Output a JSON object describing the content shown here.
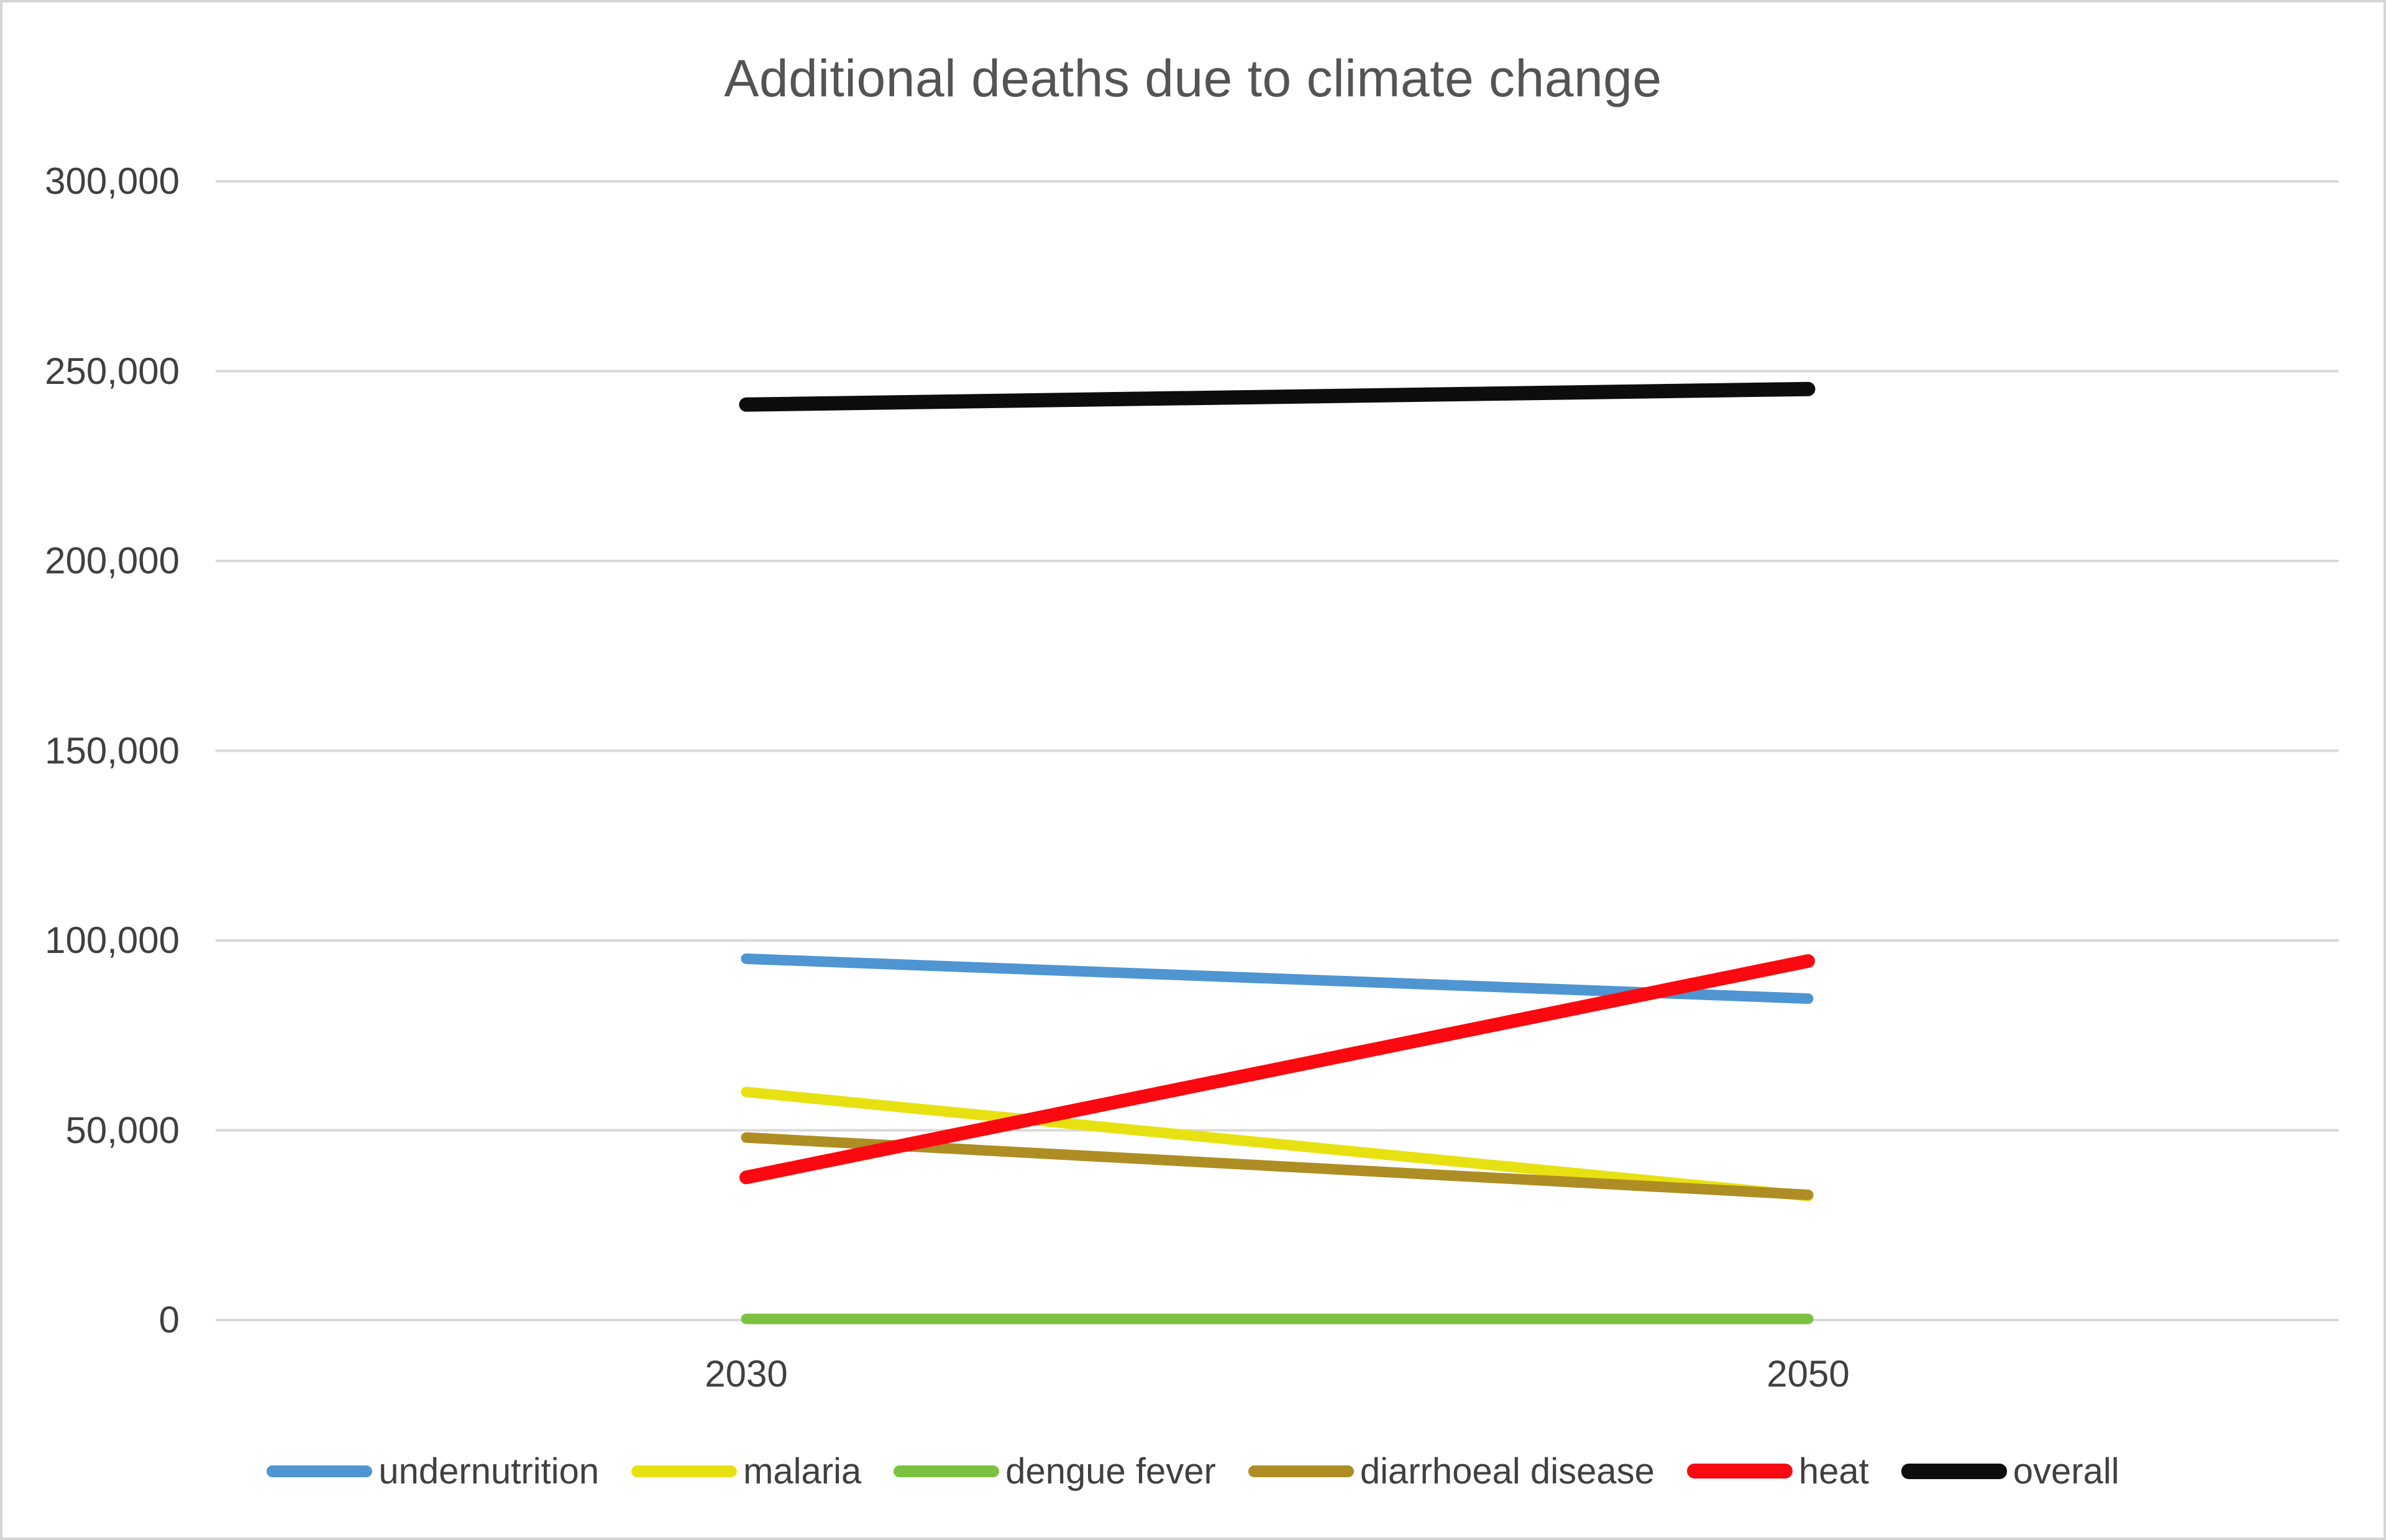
{
  "chart_data": {
    "type": "line",
    "title": "Additional deaths due to climate change",
    "categories": [
      "2030",
      "2050"
    ],
    "series": [
      {
        "name": "undernutrition",
        "color": "#4E95D2",
        "stroke_width": 17,
        "values": [
          95200,
          84700
        ]
      },
      {
        "name": "malaria",
        "color": "#E8E112",
        "stroke_width": 17,
        "values": [
          60100,
          32700
        ]
      },
      {
        "name": "dengue fever",
        "color": "#7CC242",
        "stroke_width": 17,
        "values": [
          300,
          300
        ]
      },
      {
        "name": "diarrhoeal disease",
        "color": "#AE8D24",
        "stroke_width": 17,
        "values": [
          48100,
          33000
        ]
      },
      {
        "name": "heat",
        "color": "#FA0A10",
        "stroke_width": 22,
        "values": [
          37600,
          94600
        ]
      },
      {
        "name": "overall",
        "color": "#0D0D0D",
        "stroke_width": 23,
        "values": [
          241200,
          245300
        ]
      }
    ],
    "ylim": [
      0,
      300000
    ],
    "ytick_step": 50000,
    "ytick_labels": [
      "0",
      "50,000",
      "100,000",
      "150,000",
      "200,000",
      "250,000",
      "300,000"
    ],
    "xlabel": "",
    "ylabel": "",
    "grid": "horizontal",
    "legend_position": "bottom",
    "colors": {
      "grid": "#D9D9D9",
      "axis_text": "#404040",
      "title_text": "#545454",
      "background": "#FFFFFF",
      "border": "#D6D6D6"
    }
  }
}
